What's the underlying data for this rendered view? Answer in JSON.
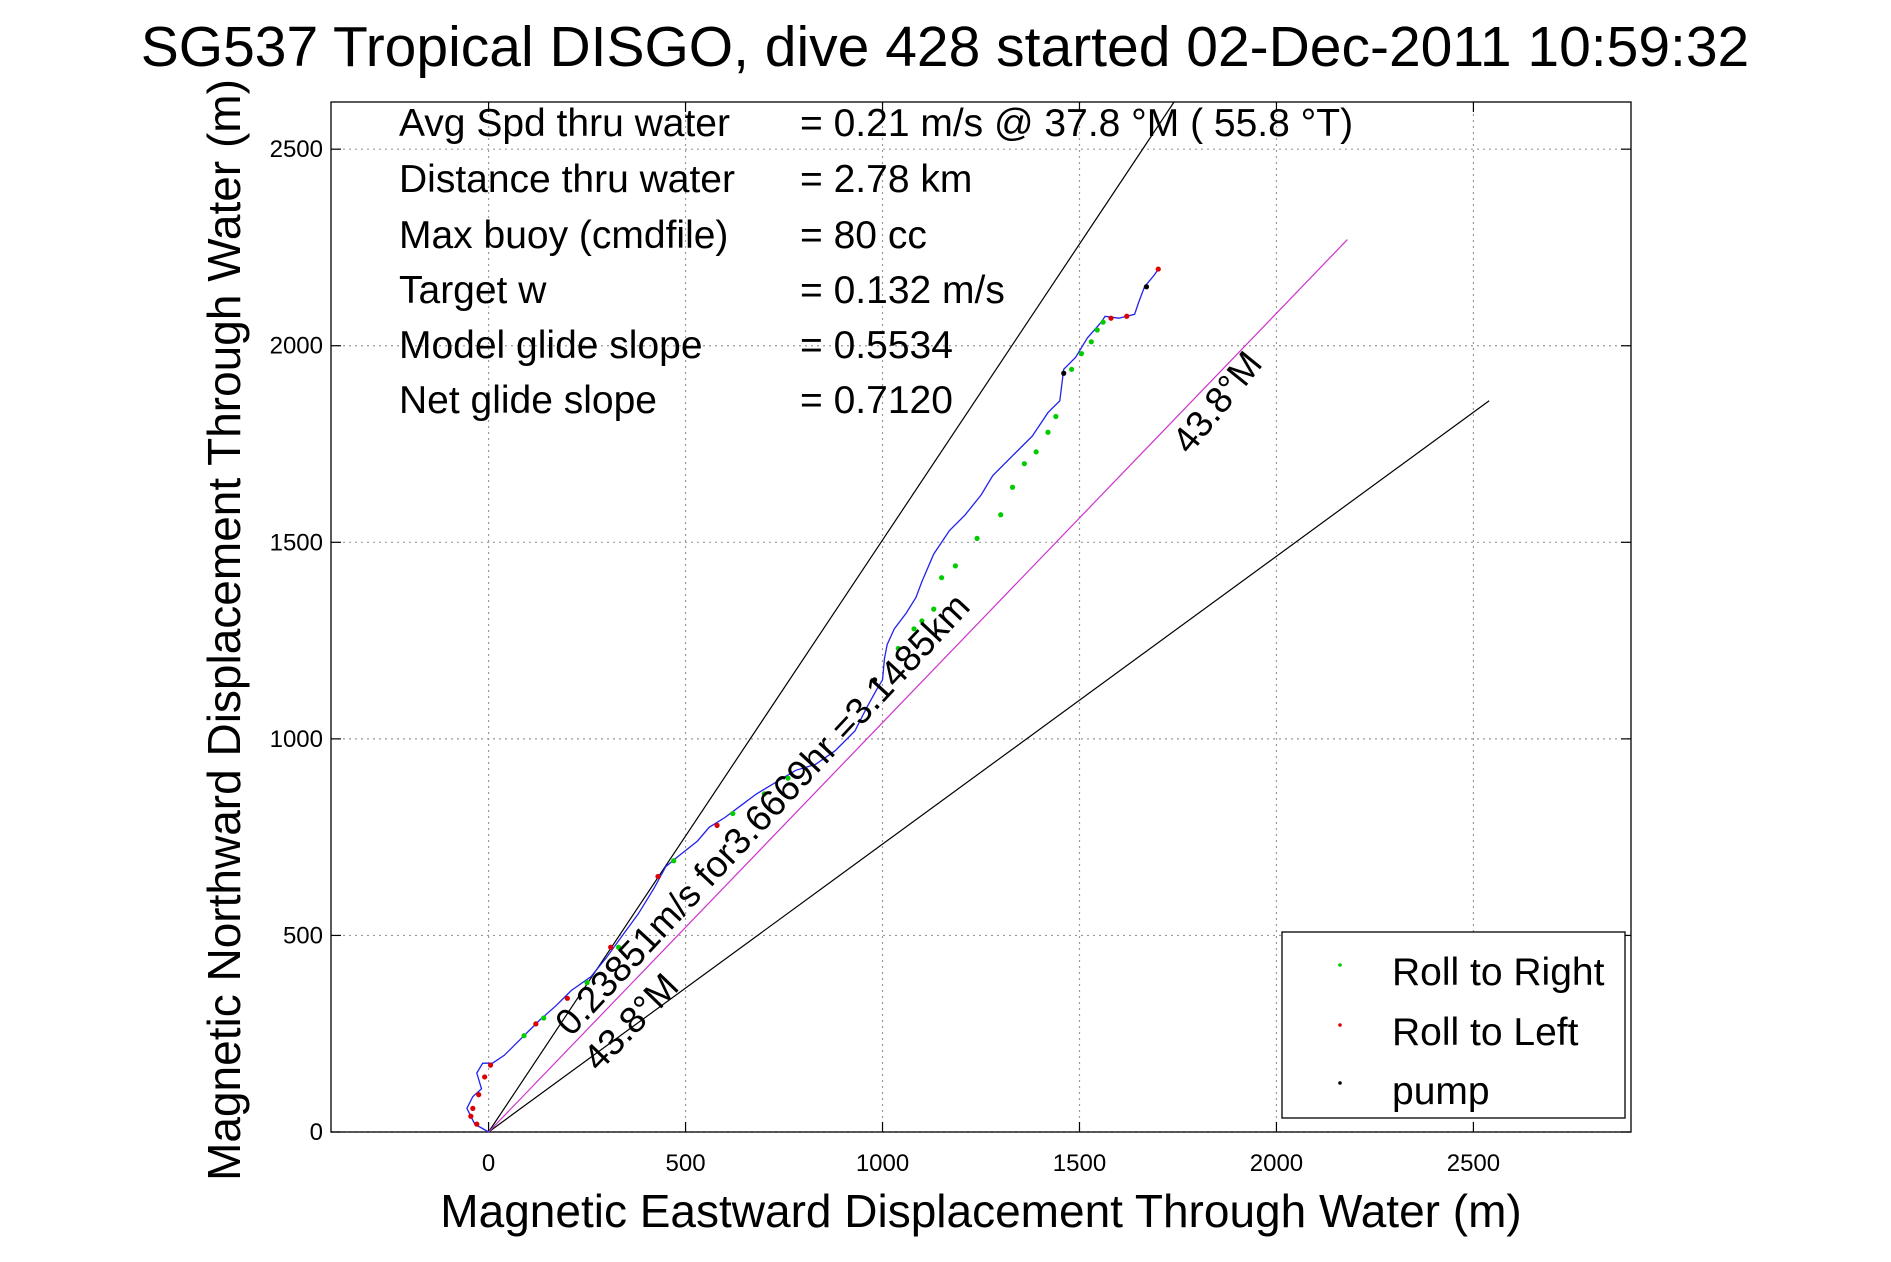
{
  "chart_data": {
    "type": "line",
    "title": "SG537 Tropical DISGO, dive 428 started 02-Dec-2011 10:59:32",
    "xlabel": "Magnetic Eastward Displacement Through Water (m)",
    "ylabel": "Magnetic Northward Displacement Through Water (m)",
    "xlim": [
      -400,
      2900
    ],
    "ylim": [
      0,
      2620
    ],
    "xticks": [
      0,
      500,
      1000,
      1500,
      2000,
      2500
    ],
    "yticks": [
      0,
      500,
      1000,
      1500,
      2000,
      2500
    ],
    "xtick_labels": [
      "0",
      "500",
      "1000",
      "1500",
      "2000",
      "2500"
    ],
    "ytick_labels": [
      "0",
      "500",
      "1000",
      "1500",
      "2000",
      "2500"
    ],
    "grid": true,
    "legend_position": "bottom-right",
    "stats": [
      {
        "label": "Avg Spd thru water",
        "value": "=  0.21 m/s @  37.8 °M ( 55.8 °T)"
      },
      {
        "label": "Distance thru water",
        "value": "=  2.78 km"
      },
      {
        "label": "Max buoy (cmdfile)",
        "value": "= 80 cc"
      },
      {
        "label": "Target w",
        "value": "= 0.132 m/s"
      },
      {
        "label": "Model glide slope",
        "value": "= 0.5534"
      },
      {
        "label": "Net glide slope",
        "value": "= 0.7120"
      }
    ],
    "reference_lines": [
      {
        "from": [
          0,
          0
        ],
        "to": [
          1740,
          2620
        ],
        "color": "#000000"
      },
      {
        "from": [
          0,
          0
        ],
        "to": [
          2540,
          1860
        ],
        "color": "#000000"
      },
      {
        "from": [
          0,
          0
        ],
        "to": [
          2180,
          2270
        ],
        "color": "#cc33cc"
      }
    ],
    "annotations": [
      {
        "text": "43.8°M",
        "x": 1780,
        "y": 1720,
        "angle": -51
      },
      {
        "text": "0.23851m/s for3.6669hr =3.1485km",
        "x": 210,
        "y": 240,
        "angle": -47
      },
      {
        "text": "43.8°M",
        "x": 280,
        "y": 150,
        "angle": -46
      }
    ],
    "series": [
      {
        "name": "track",
        "color": "#2222ee",
        "x": [
          0,
          -35,
          -55,
          -40,
          -18,
          -30,
          -15,
          10,
          40,
          80,
          130,
          170,
          210,
          260,
          300,
          340,
          380,
          420,
          450,
          480,
          530,
          560,
          600,
          640,
          680,
          730,
          780,
          830,
          880,
          930,
          960,
          985,
          1000,
          1005,
          1012,
          1030,
          1060,
          1085,
          1100,
          1130,
          1170,
          1210,
          1250,
          1280,
          1330,
          1380,
          1420,
          1450,
          1460,
          1490,
          1520,
          1555,
          1565,
          1600,
          1640,
          1650,
          1665,
          1690,
          1700
        ],
        "y": [
          0,
          20,
          60,
          90,
          110,
          150,
          175,
          175,
          195,
          235,
          285,
          320,
          360,
          395,
          445,
          500,
          555,
          620,
          675,
          700,
          740,
          775,
          800,
          830,
          860,
          890,
          920,
          935,
          970,
          1020,
          1080,
          1125,
          1150,
          1205,
          1240,
          1280,
          1320,
          1360,
          1400,
          1470,
          1530,
          1570,
          1620,
          1670,
          1720,
          1770,
          1830,
          1860,
          1940,
          1970,
          2020,
          2060,
          2075,
          2070,
          2080,
          2110,
          2150,
          2180,
          2195
        ]
      }
    ],
    "markers": [
      {
        "name": "Roll to Right",
        "color": "#00cc00",
        "x": [
          90,
          140,
          250,
          330,
          470,
          620,
          700,
          760,
          1040,
          1080,
          1100,
          1130,
          1150,
          1185,
          1240,
          1300,
          1330,
          1360,
          1390,
          1420,
          1440,
          1480,
          1505,
          1530,
          1545,
          1560
        ],
        "y": [
          245,
          290,
          380,
          470,
          690,
          810,
          860,
          900,
          1230,
          1280,
          1300,
          1330,
          1410,
          1440,
          1510,
          1570,
          1640,
          1700,
          1730,
          1780,
          1820,
          1940,
          1980,
          2010,
          2040,
          2060
        ]
      },
      {
        "name": "Roll to Left",
        "color": "#dd0000",
        "x": [
          -30,
          -45,
          -40,
          -25,
          -10,
          5,
          120,
          200,
          310,
          430,
          580,
          1580,
          1620,
          1700
        ],
        "y": [
          20,
          40,
          60,
          95,
          140,
          170,
          275,
          340,
          470,
          650,
          780,
          2070,
          2075,
          2195
        ]
      },
      {
        "name": "pump",
        "color": "#000000",
        "x": [
          980,
          1460,
          1670
        ],
        "y": [
          1150,
          1930,
          2150
        ]
      }
    ],
    "legend": [
      "Roll to Right",
      "Roll to Left",
      "pump"
    ]
  }
}
